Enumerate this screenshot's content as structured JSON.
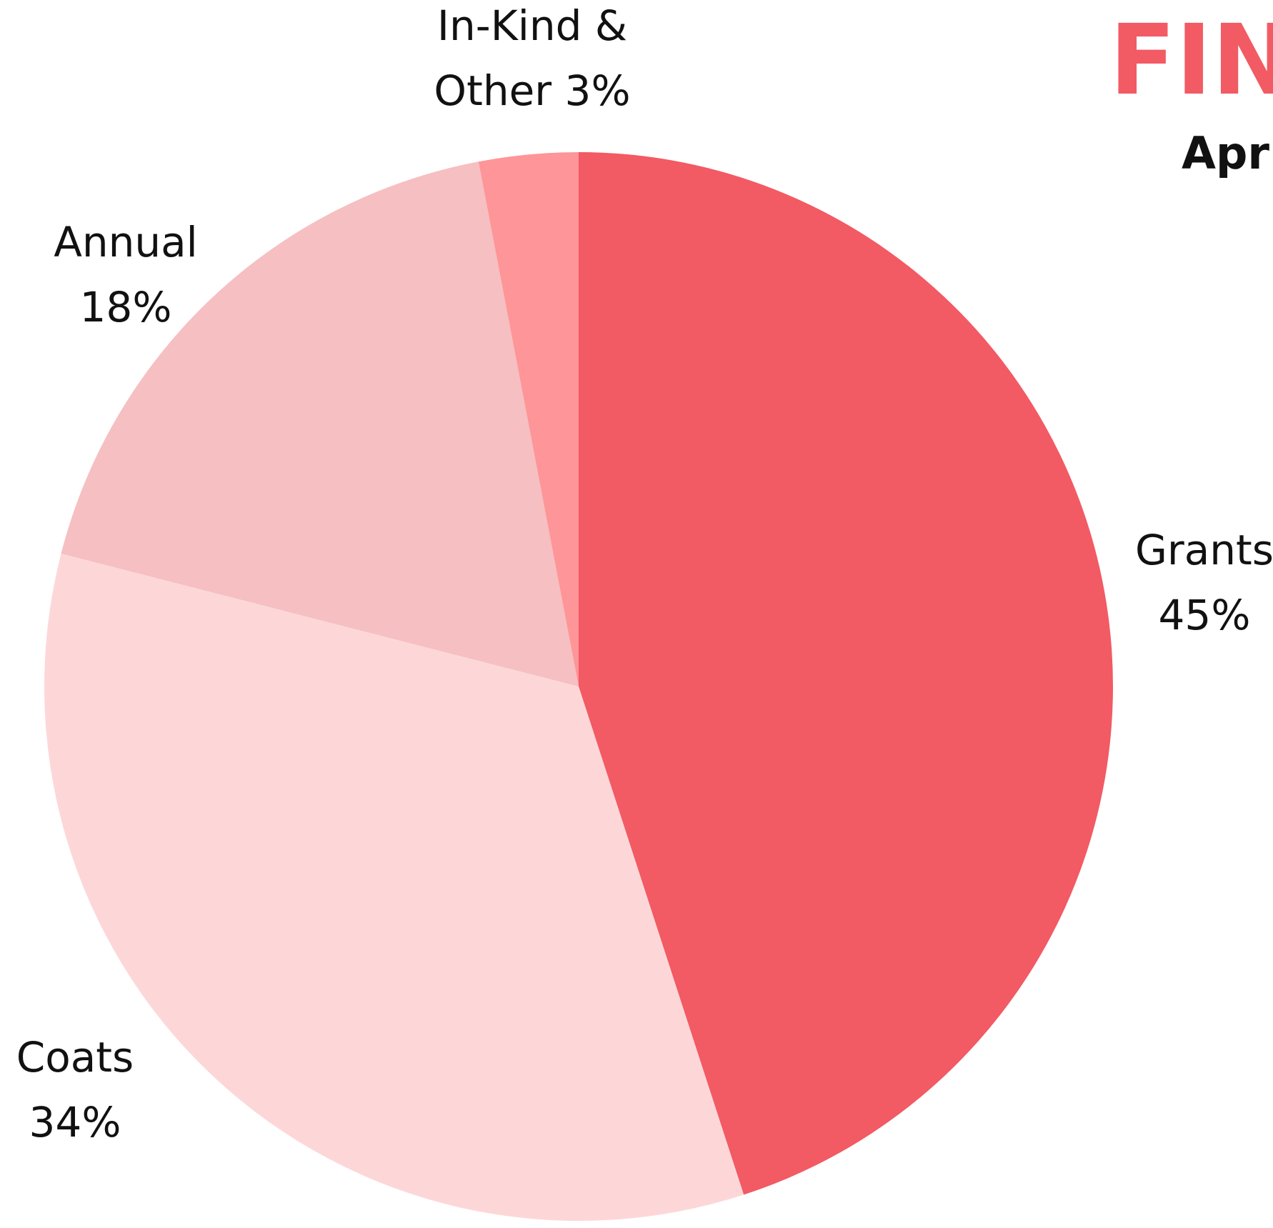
{
  "chart_data": {
    "type": "pie",
    "title": "FIN",
    "subtitle": "Apri",
    "categories": [
      "Grants",
      "Coats",
      "Annual",
      "In-Kind & Other"
    ],
    "values": [
      45,
      34,
      18,
      3
    ],
    "value_labels": [
      "45%",
      "34%",
      "18%",
      "3%"
    ],
    "colors": [
      "#f25a64",
      "#fdd7d8",
      "#f6bfc1",
      "#fe9598"
    ],
    "start_angle": 0,
    "direction": "clockwise"
  }
}
